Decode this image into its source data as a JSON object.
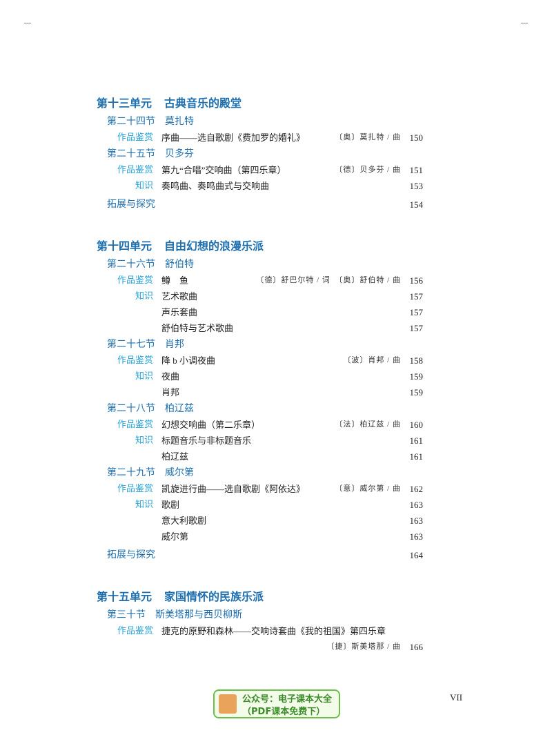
{
  "units": [
    {
      "label": "第十三单元",
      "title": "古典音乐的殿堂",
      "blocks": [
        {
          "section": "第二十四节",
          "name": "莫扎特",
          "entries": [
            {
              "kind": "作品鉴赏",
              "text": "序曲——选自歌剧《费加罗的婚礼》",
              "credit": "〔奥〕莫扎特 / 曲",
              "page": 150
            }
          ]
        },
        {
          "section": "第二十五节",
          "name": "贝多芬",
          "entries": [
            {
              "kind": "作品鉴赏",
              "text": "第九“合唱”交响曲（第四乐章）",
              "credit": "〔德〕贝多芬 / 曲",
              "page": 151
            },
            {
              "kind": "知识",
              "text": "奏鸣曲、奏鸣曲式与交响曲",
              "page": 153
            }
          ]
        }
      ],
      "extra": {
        "text": "拓展与探究",
        "page": 154
      }
    },
    {
      "label": "第十四单元",
      "title": "自由幻想的浪漫乐派",
      "blocks": [
        {
          "section": "第二十六节",
          "name": "舒伯特",
          "entries": [
            {
              "kind": "作品鉴赏",
              "text": "鳟　鱼",
              "credit": "〔德〕舒巴尔特 / 词　〔奥〕舒伯特 / 曲",
              "page": 156
            },
            {
              "kind": "知识",
              "text": "艺术歌曲",
              "page": 157
            },
            {
              "text": "声乐套曲",
              "page": 157
            },
            {
              "text": "舒伯特与艺术歌曲",
              "page": 157
            }
          ]
        },
        {
          "section": "第二十七节",
          "name": "肖邦",
          "entries": [
            {
              "kind": "作品鉴赏",
              "text": "降 b 小调夜曲",
              "credit": "〔波〕肖邦 / 曲",
              "page": 158
            },
            {
              "kind": "知识",
              "text": "夜曲",
              "page": 159
            },
            {
              "text": "肖邦",
              "page": 159
            }
          ]
        },
        {
          "section": "第二十八节",
          "name": "柏辽兹",
          "entries": [
            {
              "kind": "作品鉴赏",
              "text": "幻想交响曲（第二乐章）",
              "credit": "〔法〕柏辽兹 / 曲",
              "page": 160
            },
            {
              "kind": "知识",
              "text": "标题音乐与非标题音乐",
              "page": 161
            },
            {
              "text": "柏辽兹",
              "page": 161
            }
          ]
        },
        {
          "section": "第二十九节",
          "name": "威尔第",
          "entries": [
            {
              "kind": "作品鉴赏",
              "text": "凯旋进行曲——选自歌剧《阿依达》",
              "credit": "〔意〕威尔第 / 曲",
              "page": 162
            },
            {
              "kind": "知识",
              "text": "歌剧",
              "page": 163
            },
            {
              "text": "意大利歌剧",
              "page": 163
            },
            {
              "text": "威尔第",
              "page": 163
            }
          ]
        }
      ],
      "extra": {
        "text": "拓展与探究",
        "page": 164
      }
    },
    {
      "label": "第十五单元",
      "title": "家国情怀的民族乐派",
      "blocks": [
        {
          "section": "第三十节",
          "name": "斯美塔那与西贝柳斯",
          "entries": [
            {
              "kind": "作品鉴赏",
              "text": "捷克的原野和森林——交响诗套曲《我的祖国》第四乐章",
              "credit": "〔捷〕斯美塔那 / 曲",
              "page": 166
            }
          ]
        }
      ]
    }
  ],
  "page_number": "VII",
  "watermark": [
    "公众号：电子课本大全",
    "（PDF课本免费下）"
  ]
}
